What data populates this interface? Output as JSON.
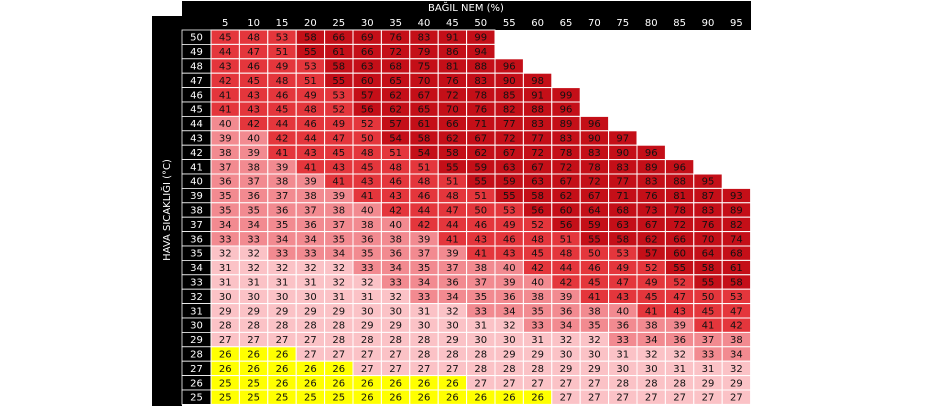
{
  "table": {
    "title": "BAĞIL NEM (%)",
    "row_header": "HAVA SICAKLIĞI (°C)",
    "color_bands": [
      {
        "upto": 26,
        "color": "#ffff00"
      },
      {
        "upto": 32,
        "color": "#fbc2c6"
      },
      {
        "upto": 40,
        "color": "#f28a90"
      },
      {
        "upto": 53,
        "color": "#e4363c"
      },
      {
        "upto": 999,
        "color": "#c40f18"
      }
    ],
    "columns": [
      5,
      10,
      15,
      20,
      25,
      30,
      35,
      40,
      45,
      50,
      55,
      60,
      65,
      70,
      75,
      80,
      85,
      90,
      95
    ],
    "rows": [
      {
        "label": 50,
        "values": [
          45,
          48,
          53,
          58,
          66,
          69,
          76,
          83,
          91,
          99
        ]
      },
      {
        "label": 49,
        "values": [
          44,
          47,
          51,
          55,
          61,
          66,
          72,
          79,
          86,
          94
        ]
      },
      {
        "label": 48,
        "values": [
          43,
          46,
          49,
          53,
          58,
          63,
          68,
          75,
          81,
          88,
          96
        ]
      },
      {
        "label": 47,
        "values": [
          42,
          45,
          48,
          51,
          55,
          60,
          65,
          70,
          76,
          83,
          90,
          98
        ]
      },
      {
        "label": 46,
        "values": [
          41,
          43,
          46,
          49,
          53,
          57,
          62,
          67,
          72,
          78,
          85,
          91,
          99
        ]
      },
      {
        "label": 45,
        "values": [
          41,
          43,
          45,
          48,
          52,
          56,
          62,
          65,
          70,
          76,
          82,
          88,
          96
        ]
      },
      {
        "label": 44,
        "values": [
          40,
          42,
          44,
          46,
          49,
          52,
          57,
          61,
          66,
          71,
          77,
          83,
          89,
          96
        ]
      },
      {
        "label": 43,
        "values": [
          39,
          40,
          42,
          44,
          47,
          50,
          54,
          58,
          62,
          67,
          72,
          77,
          83,
          90,
          97
        ]
      },
      {
        "label": 42,
        "values": [
          38,
          39,
          41,
          43,
          45,
          48,
          51,
          54,
          58,
          62,
          67,
          72,
          78,
          83,
          90,
          96
        ]
      },
      {
        "label": 41,
        "values": [
          37,
          38,
          39,
          41,
          43,
          45,
          48,
          51,
          55,
          59,
          63,
          67,
          72,
          78,
          83,
          89,
          96
        ]
      },
      {
        "label": 40,
        "values": [
          36,
          37,
          38,
          39,
          41,
          43,
          46,
          48,
          51,
          55,
          59,
          63,
          67,
          72,
          77,
          83,
          88,
          95
        ]
      },
      {
        "label": 39,
        "values": [
          35,
          36,
          37,
          38,
          39,
          41,
          43,
          46,
          48,
          51,
          55,
          58,
          62,
          67,
          71,
          76,
          81,
          87,
          93
        ]
      },
      {
        "label": 38,
        "values": [
          35,
          35,
          36,
          37,
          38,
          40,
          42,
          44,
          47,
          50,
          53,
          56,
          60,
          64,
          68,
          73,
          78,
          83,
          89
        ]
      },
      {
        "label": 37,
        "values": [
          34,
          34,
          35,
          36,
          37,
          38,
          40,
          42,
          44,
          46,
          49,
          52,
          56,
          59,
          63,
          67,
          72,
          76,
          82
        ]
      },
      {
        "label": 36,
        "values": [
          33,
          33,
          34,
          34,
          35,
          36,
          38,
          39,
          41,
          43,
          46,
          48,
          51,
          55,
          58,
          62,
          66,
          70,
          74
        ]
      },
      {
        "label": 35,
        "values": [
          32,
          32,
          33,
          33,
          34,
          35,
          36,
          37,
          39,
          41,
          43,
          45,
          48,
          50,
          53,
          57,
          60,
          64,
          68
        ]
      },
      {
        "label": 34,
        "values": [
          31,
          32,
          32,
          32,
          32,
          33,
          34,
          35,
          37,
          38,
          40,
          42,
          44,
          46,
          49,
          52,
          55,
          58,
          61
        ]
      },
      {
        "label": 33,
        "values": [
          31,
          31,
          31,
          31,
          32,
          32,
          33,
          34,
          36,
          37,
          39,
          40,
          42,
          45,
          47,
          49,
          52,
          55,
          58
        ]
      },
      {
        "label": 32,
        "values": [
          30,
          30,
          30,
          30,
          31,
          31,
          32,
          33,
          34,
          35,
          36,
          38,
          39,
          41,
          43,
          45,
          47,
          50,
          53
        ]
      },
      {
        "label": 31,
        "values": [
          29,
          29,
          29,
          29,
          29,
          30,
          30,
          31,
          32,
          33,
          34,
          35,
          36,
          38,
          40,
          41,
          43,
          45,
          47
        ]
      },
      {
        "label": 30,
        "values": [
          28,
          28,
          28,
          28,
          28,
          29,
          29,
          30,
          30,
          31,
          32,
          33,
          34,
          35,
          36,
          38,
          39,
          41,
          42
        ]
      },
      {
        "label": 29,
        "values": [
          27,
          27,
          27,
          27,
          28,
          28,
          28,
          28,
          29,
          30,
          30,
          31,
          32,
          32,
          33,
          34,
          36,
          37,
          38
        ]
      },
      {
        "label": 28,
        "values": [
          26,
          26,
          26,
          27,
          27,
          27,
          27,
          28,
          28,
          28,
          29,
          29,
          30,
          30,
          31,
          32,
          32,
          33,
          34
        ]
      },
      {
        "label": 27,
        "values": [
          26,
          26,
          26,
          26,
          26,
          27,
          27,
          27,
          27,
          28,
          28,
          28,
          29,
          29,
          30,
          30,
          31,
          31,
          32
        ]
      },
      {
        "label": 26,
        "values": [
          25,
          25,
          26,
          26,
          26,
          26,
          26,
          26,
          26,
          27,
          27,
          27,
          27,
          27,
          28,
          28,
          28,
          29,
          29
        ]
      },
      {
        "label": 25,
        "values": [
          25,
          25,
          25,
          25,
          25,
          26,
          26,
          26,
          26,
          26,
          26,
          26,
          27,
          27,
          27,
          27,
          27,
          27,
          27
        ]
      }
    ]
  }
}
